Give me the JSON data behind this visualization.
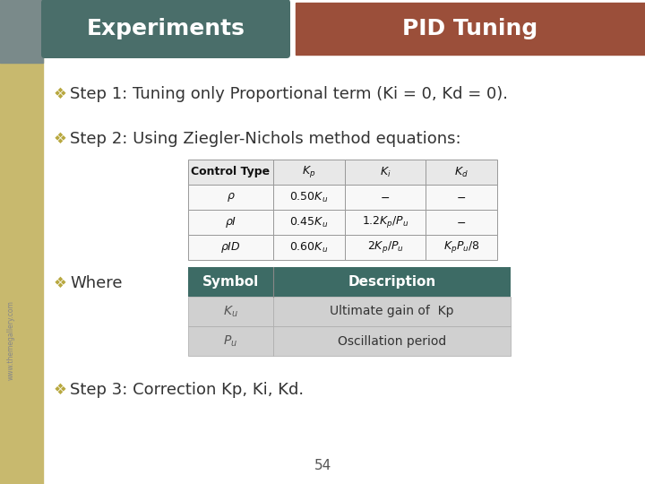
{
  "title_left": "Experiments",
  "title_right": "PID Tuning",
  "title_left_bg": "#4a6e6a",
  "title_right_bg": "#9b4f3a",
  "title_text_color": "#ffffff",
  "step1": "Step 1: Tuning only Proportional term (Ki = 0, Kd = 0).",
  "step2": "Step 2: Using Ziegler-Nichols method equations:",
  "step3": "Step 3: Correction Kp, Ki, Kd.",
  "bullet_color": "#b8a840",
  "slide_bg": "#ffffff",
  "left_bar_color": "#c8b96e",
  "left_bar_width": 48,
  "img_bg": "#7a8a8a",
  "table1_header_bg": "#e8e8e8",
  "table1_row_bg": "#f8f8f8",
  "table2_header_bg": "#3d6b65",
  "table2_header_text": "#ffffff",
  "table2_row_bg": "#d0d0d0",
  "page_number": "54",
  "watermark": "www.themegallery.com"
}
